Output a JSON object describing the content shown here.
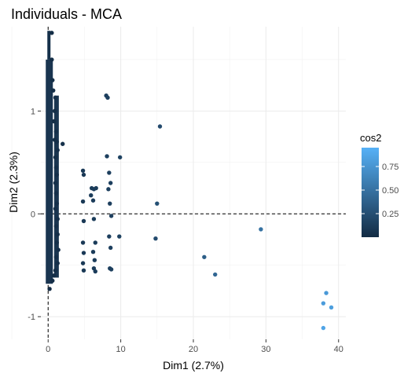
{
  "chart_data": {
    "type": "scatter",
    "title": "Individuals - MCA",
    "xlabel": "Dim1 (2.7%)",
    "ylabel": "Dim2 (2.3%)",
    "xlim": [
      -1,
      41
    ],
    "ylim": [
      -1.22,
      1.82
    ],
    "x_ticks": [
      0,
      10,
      20,
      30,
      40
    ],
    "y_ticks": [
      -1,
      0,
      1
    ],
    "x_tick_labels": [
      "0",
      "10",
      "20",
      "30",
      "40"
    ],
    "y_tick_labels": [
      "-1",
      "0",
      "1"
    ],
    "grid": true,
    "reference_lines": {
      "x": 0,
      "y": 0
    },
    "legend": {
      "title": "cos2",
      "position": "right",
      "scale": "continuous",
      "ticks": [
        0.25,
        0.5,
        0.75
      ],
      "tick_labels": [
        "0.25",
        "0.50",
        "0.75"
      ],
      "range": [
        0.0,
        0.95
      ],
      "low_color": "#132b43",
      "high_color": "#56b1f7"
    },
    "points": [
      {
        "x": 0.5,
        "y": 1.76,
        "cos2": 0.02
      },
      {
        "x": 0.5,
        "y": 1.5,
        "cos2": 0.02
      },
      {
        "x": 0.6,
        "y": 1.3,
        "cos2": 0.02
      },
      {
        "x": 0.7,
        "y": 1.2,
        "cos2": 0.02
      },
      {
        "x": 1.0,
        "y": 1.13,
        "cos2": 0.03
      },
      {
        "x": 0.9,
        "y": 1.0,
        "cos2": 0.02
      },
      {
        "x": 0.8,
        "y": 0.9,
        "cos2": 0.02
      },
      {
        "x": 1.1,
        "y": 0.8,
        "cos2": 0.03
      },
      {
        "x": 0.9,
        "y": 0.72,
        "cos2": 0.02
      },
      {
        "x": 1.2,
        "y": 0.7,
        "cos2": 0.03
      },
      {
        "x": 1.3,
        "y": 0.62,
        "cos2": 0.03
      },
      {
        "x": 2.0,
        "y": 0.68,
        "cos2": 0.04
      },
      {
        "x": 1.0,
        "y": 0.55,
        "cos2": 0.03
      },
      {
        "x": 1.1,
        "y": 0.45,
        "cos2": 0.03
      },
      {
        "x": 1.2,
        "y": 0.38,
        "cos2": 0.03
      },
      {
        "x": 1.0,
        "y": 0.3,
        "cos2": 0.03
      },
      {
        "x": 1.1,
        "y": 0.2,
        "cos2": 0.03
      },
      {
        "x": 1.2,
        "y": 0.1,
        "cos2": 0.03
      },
      {
        "x": 1.0,
        "y": 0.05,
        "cos2": 0.03
      },
      {
        "x": 1.3,
        "y": -0.05,
        "cos2": 0.03
      },
      {
        "x": 1.1,
        "y": -0.12,
        "cos2": 0.03
      },
      {
        "x": 1.3,
        "y": -0.2,
        "cos2": 0.03
      },
      {
        "x": 1.2,
        "y": -0.28,
        "cos2": 0.03
      },
      {
        "x": 1.4,
        "y": -0.35,
        "cos2": 0.03
      },
      {
        "x": 1.1,
        "y": -0.42,
        "cos2": 0.03
      },
      {
        "x": 1.3,
        "y": -0.48,
        "cos2": 0.03
      },
      {
        "x": 1.0,
        "y": -0.55,
        "cos2": 0.03
      },
      {
        "x": 0.8,
        "y": -0.6,
        "cos2": 0.02
      },
      {
        "x": 0.6,
        "y": -0.65,
        "cos2": 0.02
      },
      {
        "x": 0.2,
        "y": -0.73,
        "cos2": 0.01
      },
      {
        "x": 4.8,
        "y": 0.42,
        "cos2": 0.1
      },
      {
        "x": 4.9,
        "y": 0.38,
        "cos2": 0.1
      },
      {
        "x": 4.8,
        "y": 0.12,
        "cos2": 0.1
      },
      {
        "x": 4.9,
        "y": -0.07,
        "cos2": 0.1
      },
      {
        "x": 4.8,
        "y": -0.28,
        "cos2": 0.1
      },
      {
        "x": 4.9,
        "y": -0.38,
        "cos2": 0.1
      },
      {
        "x": 4.8,
        "y": -0.48,
        "cos2": 0.1
      },
      {
        "x": 4.9,
        "y": -0.55,
        "cos2": 0.1
      },
      {
        "x": 6.0,
        "y": 0.25,
        "cos2": 0.12
      },
      {
        "x": 6.3,
        "y": 0.24,
        "cos2": 0.12
      },
      {
        "x": 6.6,
        "y": 0.25,
        "cos2": 0.12
      },
      {
        "x": 5.9,
        "y": 0.18,
        "cos2": 0.12
      },
      {
        "x": 6.2,
        "y": 0.13,
        "cos2": 0.12
      },
      {
        "x": 6.3,
        "y": -0.05,
        "cos2": 0.12
      },
      {
        "x": 6.5,
        "y": -0.28,
        "cos2": 0.12
      },
      {
        "x": 6.2,
        "y": -0.37,
        "cos2": 0.12
      },
      {
        "x": 6.4,
        "y": -0.45,
        "cos2": 0.12
      },
      {
        "x": 6.3,
        "y": -0.53,
        "cos2": 0.12
      },
      {
        "x": 6.5,
        "y": -0.56,
        "cos2": 0.12
      },
      {
        "x": 8.0,
        "y": 1.15,
        "cos2": 0.14
      },
      {
        "x": 8.2,
        "y": 1.13,
        "cos2": 0.14
      },
      {
        "x": 8.1,
        "y": 0.56,
        "cos2": 0.14
      },
      {
        "x": 8.4,
        "y": 0.4,
        "cos2": 0.14
      },
      {
        "x": 8.6,
        "y": 0.3,
        "cos2": 0.14
      },
      {
        "x": 8.3,
        "y": 0.24,
        "cos2": 0.14
      },
      {
        "x": 8.5,
        "y": 0.1,
        "cos2": 0.14
      },
      {
        "x": 8.7,
        "y": -0.02,
        "cos2": 0.14
      },
      {
        "x": 8.4,
        "y": -0.22,
        "cos2": 0.14
      },
      {
        "x": 8.6,
        "y": -0.33,
        "cos2": 0.14
      },
      {
        "x": 8.5,
        "y": -0.53,
        "cos2": 0.14
      },
      {
        "x": 8.7,
        "y": -0.54,
        "cos2": 0.14
      },
      {
        "x": 9.9,
        "y": 0.55,
        "cos2": 0.16
      },
      {
        "x": 9.8,
        "y": -0.22,
        "cos2": 0.16
      },
      {
        "x": 15.4,
        "y": 0.85,
        "cos2": 0.22
      },
      {
        "x": 15.0,
        "y": 0.1,
        "cos2": 0.26
      },
      {
        "x": 14.8,
        "y": -0.24,
        "cos2": 0.22
      },
      {
        "x": 21.5,
        "y": -0.42,
        "cos2": 0.36
      },
      {
        "x": 23.0,
        "y": -0.59,
        "cos2": 0.42
      },
      {
        "x": 29.3,
        "y": -0.15,
        "cos2": 0.5
      },
      {
        "x": 38.3,
        "y": -0.77,
        "cos2": 0.78
      },
      {
        "x": 37.9,
        "y": -0.87,
        "cos2": 0.8
      },
      {
        "x": 39.0,
        "y": -0.91,
        "cos2": 0.82
      },
      {
        "x": 37.9,
        "y": -1.11,
        "cos2": 0.86
      }
    ]
  }
}
